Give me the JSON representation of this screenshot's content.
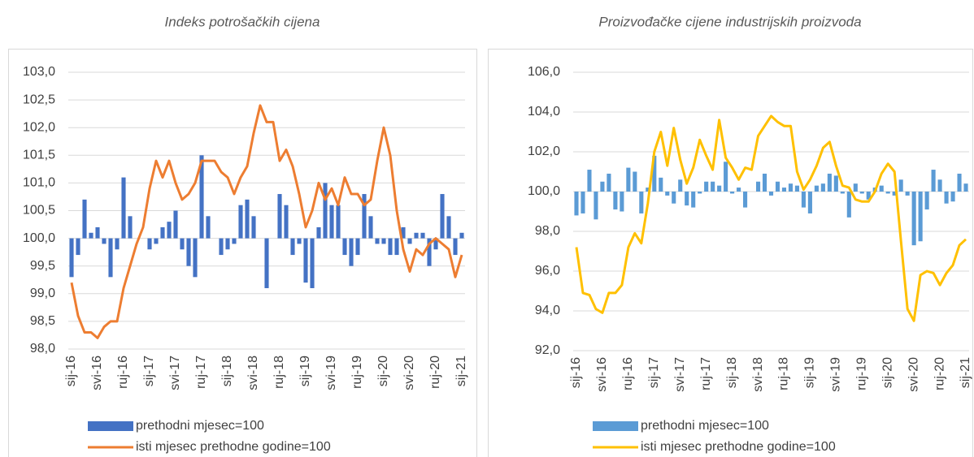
{
  "chart_data": [
    {
      "type": "bar",
      "title": "Indeks potrošačkih cijena",
      "categories": [
        "sij-16",
        null,
        null,
        null,
        "svi-16",
        null,
        null,
        null,
        "ruj-16",
        null,
        null,
        null,
        "sij-17",
        null,
        null,
        null,
        "svi-17",
        null,
        null,
        null,
        "ruj-17",
        null,
        null,
        null,
        "sij-18",
        null,
        null,
        null,
        "svi-18",
        null,
        null,
        null,
        "ruj-18",
        null,
        null,
        null,
        "sij-19",
        null,
        null,
        null,
        "svi-19",
        null,
        null,
        null,
        "ruj-19",
        null,
        null,
        null,
        "sij-20",
        null,
        null,
        null,
        "svi-20",
        null,
        null,
        null,
        "ruj-20",
        null,
        null,
        null,
        "sij-21"
      ],
      "series": [
        {
          "name": "prethodni mjesec=100",
          "type": "bar",
          "color": "#4472c4",
          "values": [
            99.3,
            99.7,
            100.7,
            100.1,
            100.2,
            99.9,
            99.3,
            99.8,
            101.1,
            100.4,
            100.0,
            100.0,
            99.8,
            99.9,
            100.2,
            100.3,
            100.5,
            99.8,
            99.5,
            99.3,
            101.5,
            100.4,
            100.0,
            99.7,
            99.8,
            99.9,
            100.6,
            100.7,
            100.4,
            100.0,
            99.1,
            100.0,
            100.8,
            100.6,
            99.7,
            99.9,
            99.2,
            99.1,
            100.2,
            101.0,
            100.6,
            100.6,
            99.7,
            99.5,
            99.7,
            100.8,
            100.4,
            99.9,
            99.9,
            99.7,
            99.7,
            100.2,
            99.9,
            100.1,
            100.1,
            99.5,
            99.8,
            100.8,
            100.4,
            99.7,
            100.1
          ]
        },
        {
          "name": "isti mjesec prethodne godine=100",
          "type": "line",
          "color": "#ed7d31",
          "values": [
            99.2,
            98.6,
            98.3,
            98.3,
            98.2,
            98.4,
            98.5,
            98.5,
            99.1,
            99.5,
            99.9,
            100.2,
            100.9,
            101.4,
            101.1,
            101.4,
            101.0,
            100.7,
            100.8,
            101.0,
            101.4,
            101.4,
            101.4,
            101.2,
            101.1,
            100.8,
            101.1,
            101.3,
            101.9,
            102.4,
            102.1,
            102.1,
            101.4,
            101.6,
            101.3,
            100.8,
            100.2,
            100.5,
            101.0,
            100.7,
            100.9,
            100.6,
            101.1,
            100.8,
            100.8,
            100.6,
            100.7,
            101.4,
            102.0,
            101.5,
            100.5,
            99.8,
            99.4,
            99.8,
            99.7,
            99.9,
            100.0,
            99.9,
            99.8,
            99.3,
            99.7
          ]
        }
      ],
      "bar_base": 100,
      "ylim": [
        98,
        103
      ],
      "yticks": [
        {
          "value": 98,
          "label": "98,0"
        },
        {
          "value": 98.5,
          "label": "98,5"
        },
        {
          "value": 99,
          "label": "99,0"
        },
        {
          "value": 99.5,
          "label": "99,5"
        },
        {
          "value": 100,
          "label": "100,0"
        },
        {
          "value": 100.5,
          "label": "100,5"
        },
        {
          "value": 101,
          "label": "101,0"
        },
        {
          "value": 101.5,
          "label": "101,5"
        },
        {
          "value": 102,
          "label": "102,0"
        },
        {
          "value": 102.5,
          "label": "102,5"
        },
        {
          "value": 103,
          "label": "103,0"
        }
      ],
      "grid": true,
      "legend": "bottom"
    },
    {
      "type": "bar",
      "title": "Proizvođačke cijene industrijskih proizvoda",
      "categories": [
        "sij-16",
        null,
        null,
        null,
        "svi-16",
        null,
        null,
        null,
        "ruj-16",
        null,
        null,
        null,
        "sij-17",
        null,
        null,
        null,
        "svi-17",
        null,
        null,
        null,
        "ruj-17",
        null,
        null,
        null,
        "sij-18",
        null,
        null,
        null,
        "svi-18",
        null,
        null,
        null,
        "ruj-18",
        null,
        null,
        null,
        "sij-19",
        null,
        null,
        null,
        "svi-19",
        null,
        null,
        null,
        "ruj-19",
        null,
        null,
        null,
        "sij-20",
        null,
        null,
        null,
        "svi-20",
        null,
        null,
        null,
        "ruj-20",
        null,
        null,
        null,
        "sij-21"
      ],
      "series": [
        {
          "name": "prethodni mjesec=100",
          "type": "bar",
          "color": "#5b9bd5",
          "values": [
            98.8,
            98.9,
            101.1,
            98.6,
            100.5,
            100.9,
            99.1,
            99.0,
            101.2,
            101.0,
            98.9,
            100.2,
            101.8,
            100.7,
            99.8,
            99.4,
            100.6,
            99.3,
            99.2,
            99.9,
            100.5,
            100.5,
            100.3,
            101.5,
            99.9,
            100.2,
            99.2,
            100.0,
            100.5,
            100.9,
            99.8,
            100.5,
            100.2,
            100.4,
            100.3,
            99.2,
            98.9,
            100.3,
            100.4,
            100.9,
            100.8,
            99.9,
            98.7,
            100.4,
            99.9,
            99.6,
            100.2,
            100.3,
            99.9,
            99.8,
            100.6,
            99.8,
            97.3,
            97.5,
            99.1,
            101.1,
            100.6,
            99.4,
            99.5,
            100.9,
            100.4
          ]
        },
        {
          "name": "isti mjesec prethodne godine=100",
          "type": "line",
          "color": "#ffc000",
          "values": [
            97.2,
            94.9,
            94.8,
            94.1,
            93.9,
            94.9,
            94.9,
            95.3,
            97.2,
            97.9,
            97.4,
            99.4,
            102.0,
            103.0,
            101.3,
            103.2,
            101.6,
            100.4,
            101.2,
            102.6,
            101.8,
            101.1,
            103.6,
            101.7,
            101.2,
            100.6,
            101.2,
            101.1,
            102.8,
            103.3,
            103.8,
            103.5,
            103.3,
            103.3,
            101.0,
            100.1,
            100.6,
            101.3,
            102.2,
            102.5,
            101.3,
            100.3,
            100.2,
            99.6,
            99.5,
            99.5,
            100.0,
            100.9,
            101.4,
            101.0,
            97.5,
            94.1,
            93.5,
            95.8,
            96.0,
            95.9,
            95.3,
            95.9,
            96.3,
            97.3,
            97.6
          ]
        }
      ],
      "bar_base": 100,
      "ylim": [
        92,
        106
      ],
      "yticks": [
        {
          "value": 92,
          "label": "92,0"
        },
        {
          "value": 94,
          "label": "94,0"
        },
        {
          "value": 96,
          "label": "96,0"
        },
        {
          "value": 98,
          "label": "98,0"
        },
        {
          "value": 100,
          "label": "100,0"
        },
        {
          "value": 102,
          "label": "102,0"
        },
        {
          "value": 104,
          "label": "104,0"
        },
        {
          "value": 106,
          "label": "106,0"
        }
      ],
      "grid": true,
      "legend": "bottom"
    }
  ]
}
